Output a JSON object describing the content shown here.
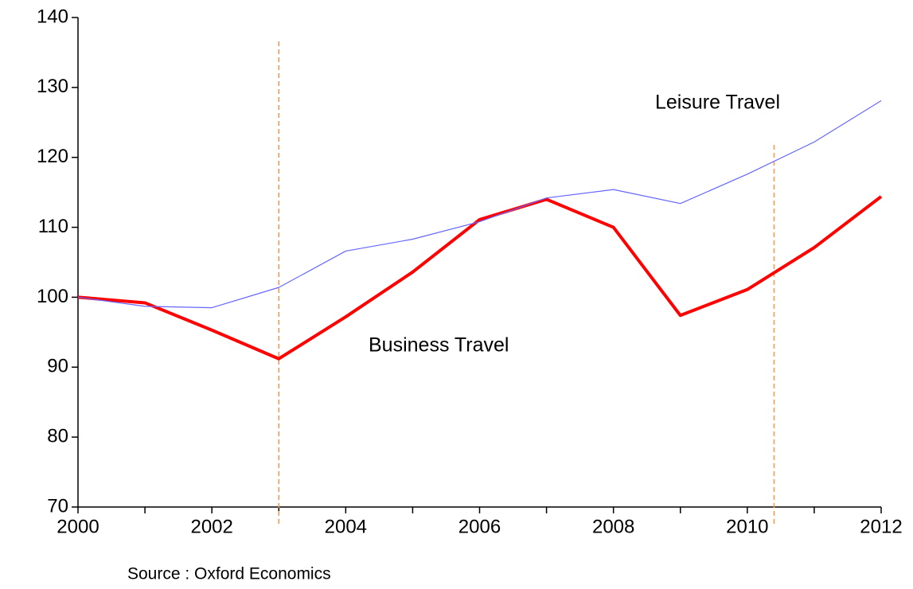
{
  "chart_data": {
    "type": "line",
    "x": [
      2000,
      2001,
      2002,
      2003,
      2004,
      2005,
      2006,
      2007,
      2008,
      2009,
      2010,
      2011,
      2012
    ],
    "series": [
      {
        "name": "Business Travel",
        "color": "#ff0000",
        "values": [
          100,
          99.2,
          95.3,
          91.2,
          97.2,
          103.6,
          111.1,
          114.0,
          110.0,
          97.4,
          101.1,
          107.1,
          114.4
        ]
      },
      {
        "name": "Leisure Travel",
        "color": "#6666ff",
        "values": [
          100,
          98.7,
          98.5,
          101.4,
          106.6,
          108.3,
          110.8,
          114.2,
          115.4,
          113.4,
          117.6,
          122.2,
          128.1
        ]
      }
    ],
    "xlim": [
      2000,
      2012
    ],
    "xticks": [
      2000,
      2002,
      2004,
      2006,
      2008,
      2010,
      2012
    ],
    "ylim": [
      70,
      140
    ],
    "yticks": [
      70,
      80,
      90,
      100,
      110,
      120,
      130,
      140
    ],
    "vlines": [
      2003,
      2010.4
    ],
    "vline_color": "#f79646",
    "source": "Source : Oxford Economics"
  }
}
